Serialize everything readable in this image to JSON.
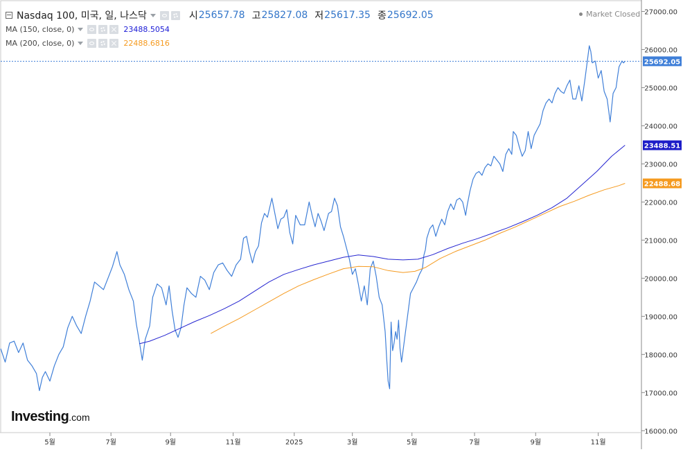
{
  "header": {
    "symbol_title": "Nasdaq 100, 미국, 일, 나스닥",
    "ohlc": [
      {
        "label": "시",
        "value": "25657.78"
      },
      {
        "label": "고",
        "value": "25827.08"
      },
      {
        "label": "저",
        "value": "25617.35"
      },
      {
        "label": "종",
        "value": "25692.05"
      }
    ],
    "market_status": "Market Closed"
  },
  "indicators": [
    {
      "label": "MA (150, close, 0)",
      "value": "23488.5054",
      "color": "#1a1ad6"
    },
    {
      "label": "MA (200, close, 0)",
      "value": "22488.6816",
      "color": "#f59a1f"
    }
  ],
  "price_badges": [
    {
      "text": "25692.05",
      "value": 25692.05,
      "color": "#3f7fd8"
    },
    {
      "text": "23488.51",
      "value": 23488.51,
      "color": "#1c1cc8"
    },
    {
      "text": "22488.68",
      "value": 22488.68,
      "color": "#f59a1f"
    }
  ],
  "logo": {
    "main": "Investing",
    "suffix": ".com"
  },
  "colors": {
    "price_line": "#3f7fd8",
    "ma150": "#2424d0",
    "ma200": "#f59a1f",
    "grid": "#e8e8e8",
    "last_price_guide": "#3f7fd8"
  },
  "chart_data": {
    "type": "line",
    "x_unit": "trading-day index (0 = late Mar 2024, 415 = mid Dec 2025)",
    "x_ticks": [
      {
        "label": "5월",
        "x": 33
      },
      {
        "label": "7월",
        "x": 74
      },
      {
        "label": "9월",
        "x": 114
      },
      {
        "label": "11월",
        "x": 156
      },
      {
        "label": "2025",
        "x": 197
      },
      {
        "label": "3월",
        "x": 236
      },
      {
        "label": "5월",
        "x": 276
      },
      {
        "label": "7월",
        "x": 318
      },
      {
        "label": "9월",
        "x": 359
      },
      {
        "label": "11월",
        "x": 401
      }
    ],
    "y_ticks": [
      16000,
      17000,
      18000,
      19000,
      20000,
      21000,
      22000,
      23000,
      24000,
      25000,
      26000,
      27000
    ],
    "y_tick_labels": [
      "16000.00",
      "17000.00",
      "18000.00",
      "19000.00",
      "20000.00",
      "21000.00",
      "22000.00",
      "23000.00",
      "24000.00",
      "25000.00",
      "26000.00",
      "27000.00"
    ],
    "ylim": [
      15950,
      27300
    ],
    "xlim": [
      0,
      430
    ],
    "grid": false,
    "series": [
      {
        "name": "Nasdaq 100",
        "points": [
          [
            0,
            18150
          ],
          [
            3,
            17800
          ],
          [
            6,
            18300
          ],
          [
            9,
            18350
          ],
          [
            12,
            18050
          ],
          [
            15,
            18300
          ],
          [
            18,
            17850
          ],
          [
            21,
            17700
          ],
          [
            24,
            17500
          ],
          [
            26,
            17050
          ],
          [
            28,
            17400
          ],
          [
            30,
            17550
          ],
          [
            33,
            17300
          ],
          [
            36,
            17700
          ],
          [
            39,
            18000
          ],
          [
            42,
            18200
          ],
          [
            45,
            18700
          ],
          [
            48,
            19000
          ],
          [
            51,
            18750
          ],
          [
            54,
            18550
          ],
          [
            57,
            19000
          ],
          [
            60,
            19400
          ],
          [
            63,
            19900
          ],
          [
            66,
            19800
          ],
          [
            69,
            19700
          ],
          [
            72,
            20000
          ],
          [
            75,
            20300
          ],
          [
            78,
            20700
          ],
          [
            80,
            20350
          ],
          [
            83,
            20100
          ],
          [
            86,
            19700
          ],
          [
            89,
            19400
          ],
          [
            91,
            18800
          ],
          [
            93,
            18350
          ],
          [
            95,
            17850
          ],
          [
            97,
            18400
          ],
          [
            100,
            18750
          ],
          [
            102,
            19500
          ],
          [
            105,
            19850
          ],
          [
            108,
            19750
          ],
          [
            111,
            19300
          ],
          [
            113,
            19800
          ],
          [
            115,
            19150
          ],
          [
            117,
            18650
          ],
          [
            119,
            18450
          ],
          [
            121,
            18700
          ],
          [
            123,
            19300
          ],
          [
            125,
            19750
          ],
          [
            128,
            19600
          ],
          [
            131,
            19500
          ],
          [
            134,
            20050
          ],
          [
            137,
            19950
          ],
          [
            140,
            19700
          ],
          [
            143,
            20150
          ],
          [
            146,
            20350
          ],
          [
            149,
            20400
          ],
          [
            152,
            20200
          ],
          [
            155,
            20050
          ],
          [
            158,
            20350
          ],
          [
            161,
            20500
          ],
          [
            163,
            21050
          ],
          [
            165,
            21100
          ],
          [
            167,
            20700
          ],
          [
            169,
            20400
          ],
          [
            171,
            20700
          ],
          [
            173,
            20850
          ],
          [
            175,
            21450
          ],
          [
            177,
            21700
          ],
          [
            179,
            21600
          ],
          [
            182,
            22100
          ],
          [
            184,
            21700
          ],
          [
            186,
            21300
          ],
          [
            188,
            21550
          ],
          [
            190,
            21600
          ],
          [
            192,
            21800
          ],
          [
            194,
            21200
          ],
          [
            196,
            20900
          ],
          [
            198,
            21650
          ],
          [
            201,
            21400
          ],
          [
            204,
            21400
          ],
          [
            207,
            22000
          ],
          [
            209,
            21650
          ],
          [
            211,
            21350
          ],
          [
            213,
            21700
          ],
          [
            215,
            21500
          ],
          [
            217,
            21250
          ],
          [
            220,
            21700
          ],
          [
            222,
            21750
          ],
          [
            224,
            22100
          ],
          [
            226,
            21900
          ],
          [
            228,
            21350
          ],
          [
            230,
            21100
          ],
          [
            232,
            20800
          ],
          [
            234,
            20500
          ],
          [
            236,
            20100
          ],
          [
            238,
            20250
          ],
          [
            240,
            19850
          ],
          [
            242,
            19400
          ],
          [
            244,
            19800
          ],
          [
            246,
            19300
          ],
          [
            248,
            20250
          ],
          [
            250,
            20450
          ],
          [
            252,
            20050
          ],
          [
            254,
            19500
          ],
          [
            256,
            19300
          ],
          [
            258,
            18600
          ],
          [
            259,
            17900
          ],
          [
            260,
            17300
          ],
          [
            261,
            17100
          ],
          [
            262,
            18850
          ],
          [
            263,
            18100
          ],
          [
            264,
            18300
          ],
          [
            265,
            18600
          ],
          [
            266,
            18400
          ],
          [
            267,
            18900
          ],
          [
            268,
            18150
          ],
          [
            269,
            17800
          ],
          [
            271,
            18400
          ],
          [
            273,
            19000
          ],
          [
            275,
            19600
          ],
          [
            277,
            19750
          ],
          [
            279,
            19900
          ],
          [
            281,
            20100
          ],
          [
            283,
            20250
          ],
          [
            284,
            20600
          ],
          [
            285,
            20750
          ],
          [
            286,
            21050
          ],
          [
            288,
            21300
          ],
          [
            290,
            21400
          ],
          [
            292,
            21100
          ],
          [
            294,
            21350
          ],
          [
            296,
            21550
          ],
          [
            298,
            21400
          ],
          [
            300,
            21750
          ],
          [
            302,
            21950
          ],
          [
            304,
            21800
          ],
          [
            306,
            22050
          ],
          [
            308,
            22100
          ],
          [
            310,
            22000
          ],
          [
            312,
            21650
          ],
          [
            313,
            21900
          ],
          [
            315,
            22300
          ],
          [
            317,
            22600
          ],
          [
            319,
            22750
          ],
          [
            321,
            22800
          ],
          [
            323,
            22700
          ],
          [
            325,
            22900
          ],
          [
            327,
            23000
          ],
          [
            329,
            22950
          ],
          [
            331,
            23200
          ],
          [
            333,
            23100
          ],
          [
            335,
            23000
          ],
          [
            337,
            22800
          ],
          [
            339,
            23250
          ],
          [
            341,
            23400
          ],
          [
            343,
            23250
          ],
          [
            344,
            23850
          ],
          [
            346,
            23750
          ],
          [
            348,
            23450
          ],
          [
            350,
            23200
          ],
          [
            352,
            23350
          ],
          [
            354,
            23850
          ],
          [
            356,
            23400
          ],
          [
            358,
            23750
          ],
          [
            360,
            23900
          ],
          [
            362,
            24050
          ],
          [
            364,
            24400
          ],
          [
            366,
            24600
          ],
          [
            368,
            24700
          ],
          [
            370,
            24600
          ],
          [
            372,
            24850
          ],
          [
            374,
            25000
          ],
          [
            376,
            24900
          ],
          [
            378,
            24850
          ],
          [
            380,
            25050
          ],
          [
            382,
            25200
          ],
          [
            384,
            24700
          ],
          [
            386,
            24700
          ],
          [
            388,
            25050
          ],
          [
            390,
            24650
          ],
          [
            392,
            25200
          ],
          [
            394,
            25800
          ],
          [
            395,
            26100
          ],
          [
            396,
            25950
          ],
          [
            397,
            25650
          ],
          [
            399,
            25700
          ],
          [
            401,
            25250
          ],
          [
            403,
            25450
          ],
          [
            405,
            24900
          ],
          [
            407,
            24700
          ],
          [
            408,
            24400
          ],
          [
            409,
            24100
          ],
          [
            411,
            24850
          ],
          [
            413,
            25000
          ],
          [
            414,
            25300
          ],
          [
            415,
            25550
          ],
          [
            417,
            25700
          ],
          [
            418,
            25650
          ],
          [
            419,
            25692.05
          ]
        ]
      },
      {
        "name": "MA (150, close, 0)",
        "points": [
          [
            93,
            18280
          ],
          [
            100,
            18350
          ],
          [
            110,
            18500
          ],
          [
            120,
            18680
          ],
          [
            130,
            18860
          ],
          [
            140,
            19020
          ],
          [
            150,
            19200
          ],
          [
            160,
            19400
          ],
          [
            170,
            19650
          ],
          [
            180,
            19900
          ],
          [
            190,
            20100
          ],
          [
            200,
            20230
          ],
          [
            210,
            20350
          ],
          [
            220,
            20450
          ],
          [
            230,
            20550
          ],
          [
            240,
            20610
          ],
          [
            250,
            20570
          ],
          [
            260,
            20500
          ],
          [
            270,
            20480
          ],
          [
            280,
            20500
          ],
          [
            290,
            20620
          ],
          [
            300,
            20780
          ],
          [
            310,
            20920
          ],
          [
            320,
            21040
          ],
          [
            330,
            21180
          ],
          [
            340,
            21320
          ],
          [
            350,
            21480
          ],
          [
            360,
            21650
          ],
          [
            370,
            21850
          ],
          [
            380,
            22100
          ],
          [
            390,
            22450
          ],
          [
            400,
            22800
          ],
          [
            410,
            23200
          ],
          [
            419,
            23488.51
          ]
        ]
      },
      {
        "name": "MA (200, close, 0)",
        "points": [
          [
            141,
            18550
          ],
          [
            150,
            18740
          ],
          [
            160,
            18940
          ],
          [
            170,
            19160
          ],
          [
            180,
            19380
          ],
          [
            190,
            19600
          ],
          [
            200,
            19800
          ],
          [
            210,
            19960
          ],
          [
            220,
            20110
          ],
          [
            230,
            20250
          ],
          [
            240,
            20310
          ],
          [
            250,
            20300
          ],
          [
            260,
            20200
          ],
          [
            270,
            20150
          ],
          [
            278,
            20180
          ],
          [
            285,
            20280
          ],
          [
            295,
            20520
          ],
          [
            305,
            20700
          ],
          [
            315,
            20850
          ],
          [
            325,
            21000
          ],
          [
            335,
            21180
          ],
          [
            345,
            21340
          ],
          [
            355,
            21520
          ],
          [
            365,
            21700
          ],
          [
            375,
            21880
          ],
          [
            385,
            22020
          ],
          [
            395,
            22180
          ],
          [
            405,
            22320
          ],
          [
            415,
            22430
          ],
          [
            419,
            22488.68
          ]
        ]
      }
    ]
  }
}
